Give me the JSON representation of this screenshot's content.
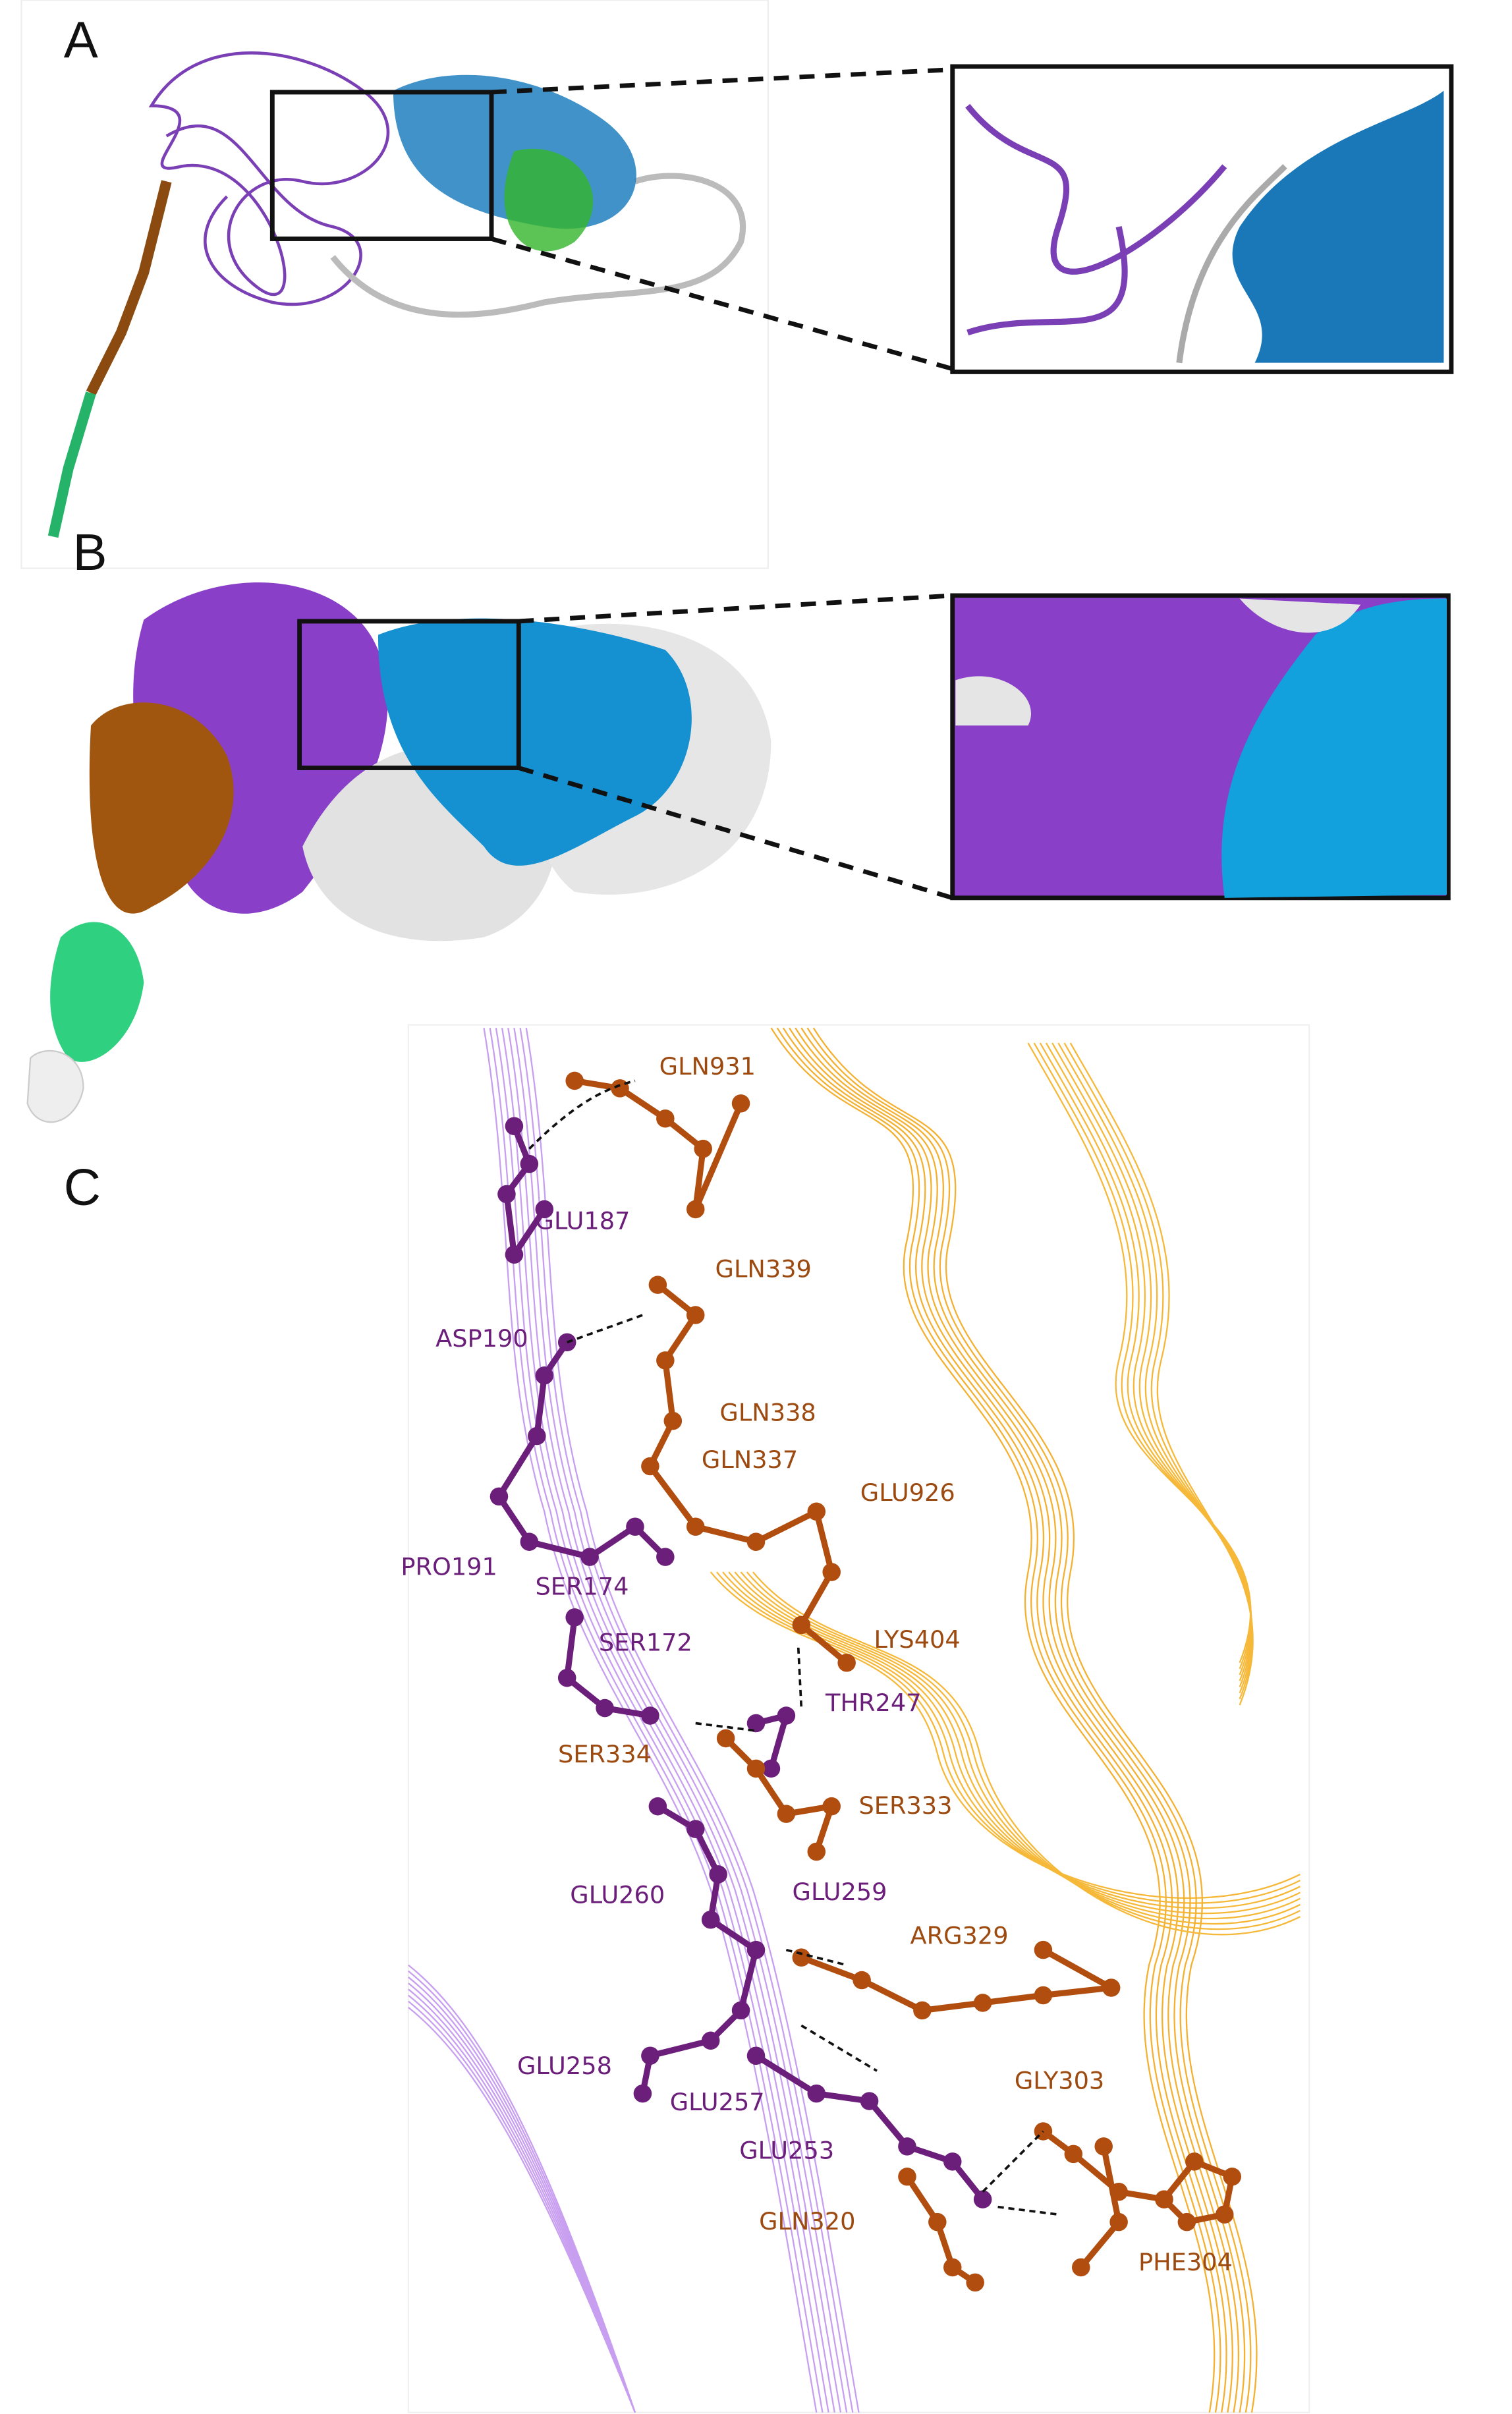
{
  "panels": {
    "a": {
      "label": "A"
    },
    "b": {
      "label": "B"
    },
    "c": {
      "label": "C",
      "residues": [
        "GLN931",
        "GLU187",
        "GLN339",
        "ASP190",
        "GLN338",
        "GLN337",
        "GLU926",
        "PRO191",
        "SER174",
        "LYS404",
        "SER172",
        "THR247",
        "SER334",
        "SER333",
        "GLU259",
        "GLU260",
        "ARG329",
        "GLU258",
        "GLU257",
        "GLY303",
        "GLU253",
        "GLN320",
        "PHE304"
      ]
    }
  }
}
